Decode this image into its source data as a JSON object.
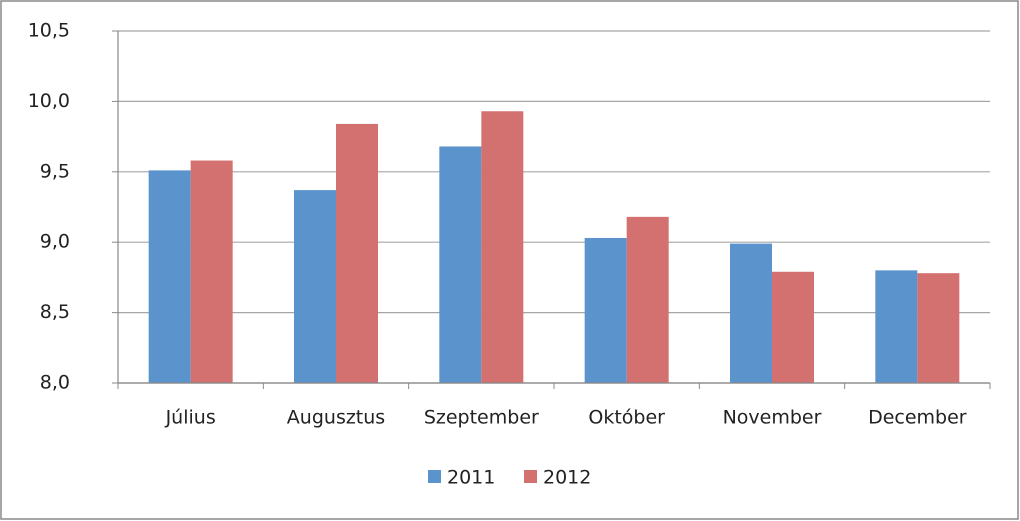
{
  "chart_data": {
    "type": "bar",
    "categories": [
      "Július",
      "Augusztus",
      "Szeptember",
      "Október",
      "November",
      "December"
    ],
    "series": [
      {
        "name": "2011",
        "color": "#5b93cc",
        "values": [
          9.51,
          9.37,
          9.68,
          9.03,
          8.99,
          8.8
        ]
      },
      {
        "name": "2012",
        "color": "#d37070",
        "values": [
          9.58,
          9.84,
          9.93,
          9.18,
          8.79,
          8.78
        ]
      }
    ],
    "ylim": [
      8,
      10.5
    ],
    "yticks": [
      {
        "value": 8,
        "label": "8,0"
      },
      {
        "value": 8.5,
        "label": "8,5"
      },
      {
        "value": 9,
        "label": "9,0"
      },
      {
        "value": 9.5,
        "label": "9,5"
      },
      {
        "value": 10,
        "label": "10,0"
      },
      {
        "value": 10.5,
        "label": "10,5"
      }
    ],
    "grid": true,
    "legend": "bottom"
  }
}
